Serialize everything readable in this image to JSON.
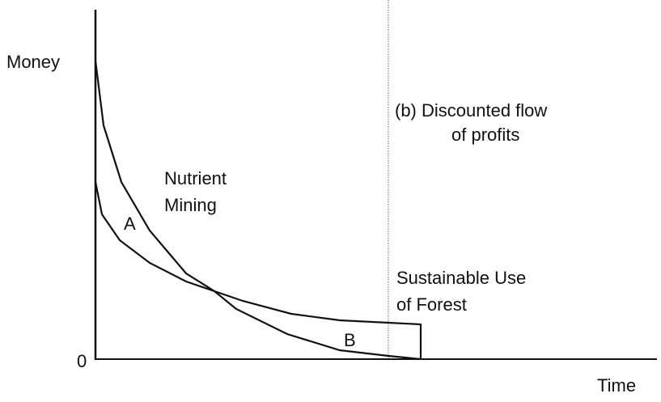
{
  "axes": {
    "y_label": "Money",
    "x_label": "Time",
    "origin": "0"
  },
  "panel_label": {
    "lines": [
      "(b) Discounted flow",
      "of profits"
    ]
  },
  "curves": [
    {
      "label": {
        "lines": [
          "Nutrient",
          "Mining"
        ]
      }
    },
    {
      "label": {
        "lines": [
          "Sustainable Use",
          "of Forest"
        ]
      }
    }
  ],
  "areas": [
    "A",
    "B"
  ]
}
